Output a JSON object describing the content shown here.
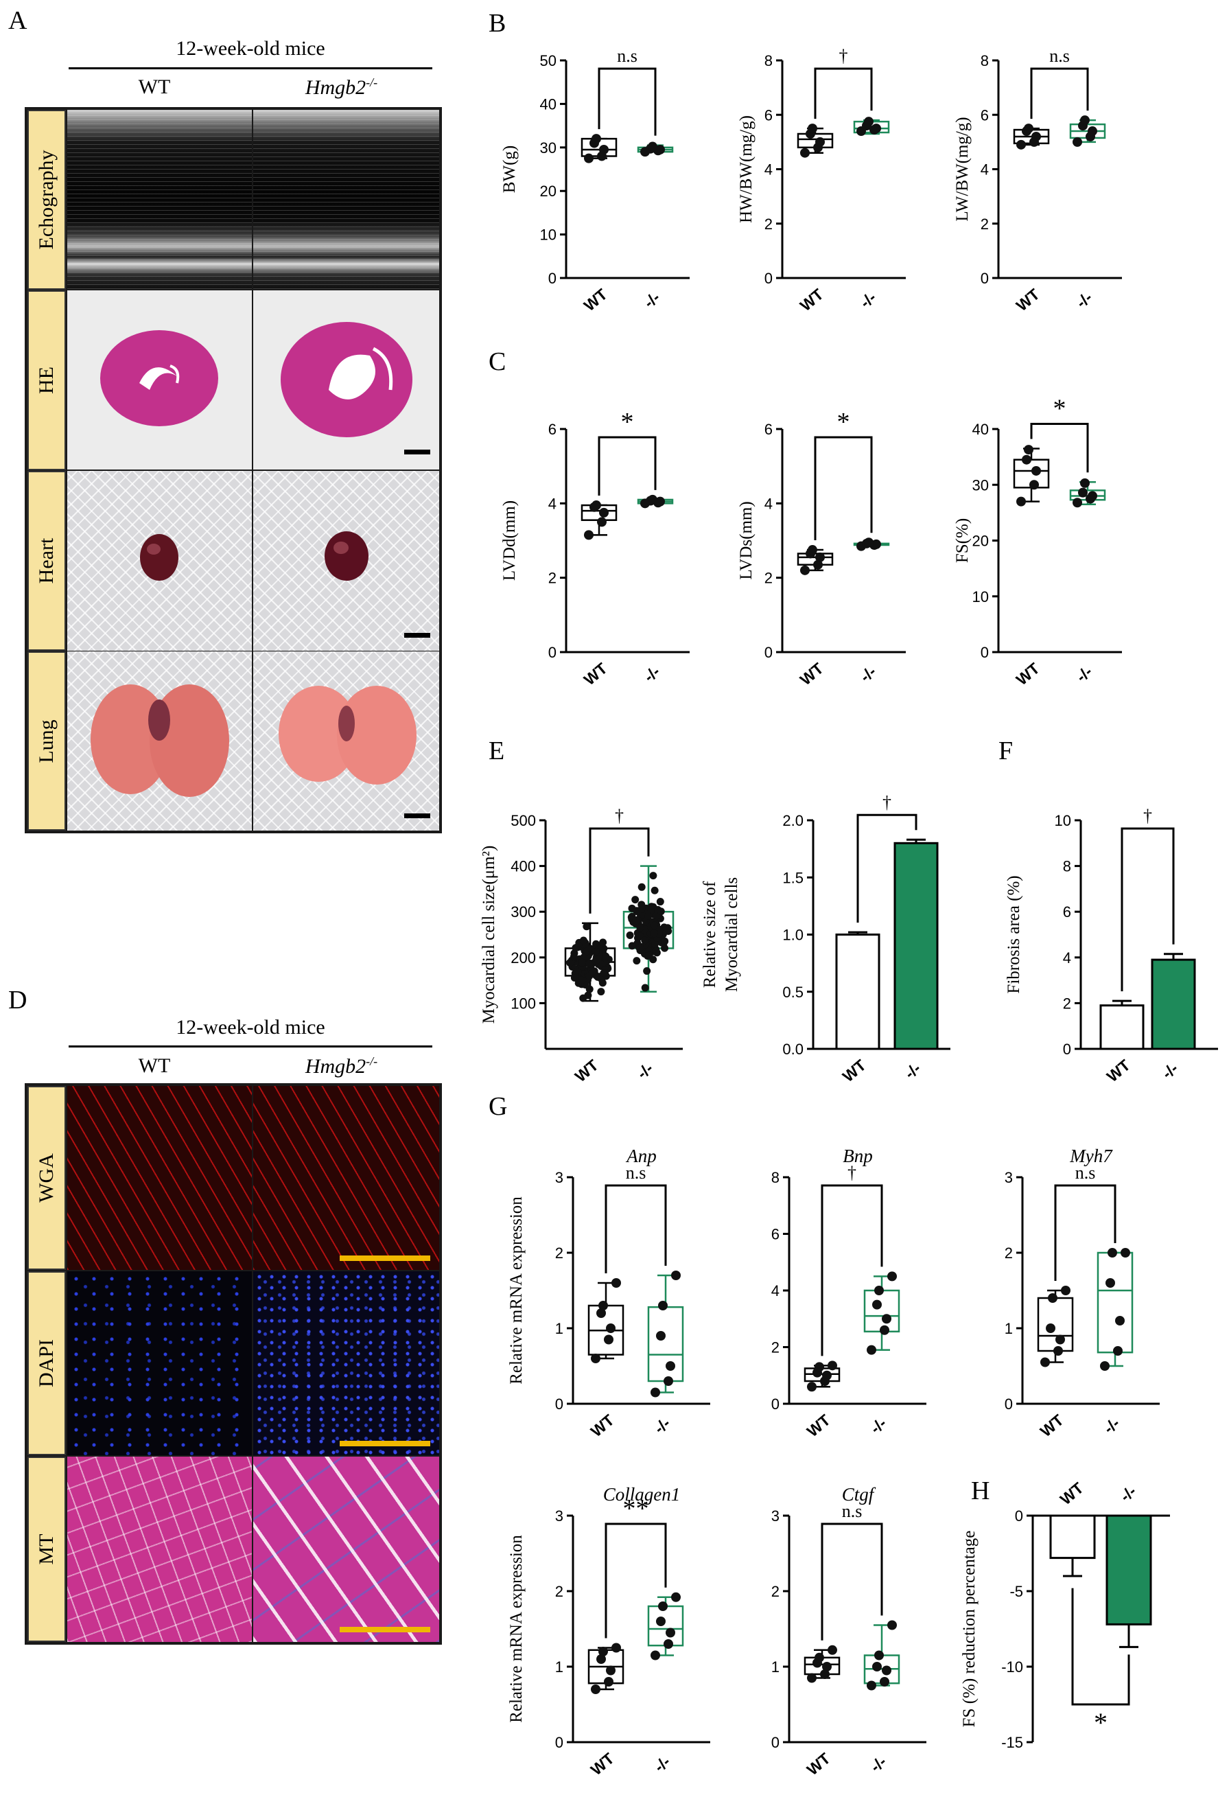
{
  "panel_labels": {
    "A": "A",
    "B": "B",
    "C": "C",
    "D": "D",
    "E": "E",
    "F": "F",
    "G": "G",
    "H": "H"
  },
  "panelA": {
    "group_header": "12-week-old mice",
    "col_wt": "WT",
    "col_ko_gene": "Hmgb2",
    "col_ko_sup": "-/-",
    "rows": [
      "Echography",
      "HE",
      "Heart",
      "Lung"
    ]
  },
  "panelD": {
    "group_header": "12-week-old mice",
    "col_wt": "WT",
    "col_ko_gene": "Hmgb2",
    "col_ko_sup": "-/-",
    "rows": [
      "WGA",
      "DAPI",
      "MT"
    ]
  },
  "colors": {
    "wt": "#000000",
    "ko": "#1e8a5a",
    "ko_bar": "#1e8a5a"
  },
  "chart_data": [
    {
      "id": "BW",
      "panel": "B",
      "type": "box",
      "ylabel": "BW(g)",
      "ylim": [
        0,
        50
      ],
      "yticks": [
        0,
        10,
        20,
        30,
        40,
        50
      ],
      "categories": [
        "WT",
        "-/-"
      ],
      "significance": "n.s",
      "boxes": [
        {
          "min": 27.5,
          "q1": 28,
          "median": 29.5,
          "q3": 32,
          "max": 32
        },
        {
          "min": 29,
          "q1": 29,
          "median": 29.5,
          "q3": 30,
          "max": 30.5
        }
      ],
      "points": [
        [
          27.5,
          28,
          29.5,
          31,
          32
        ],
        [
          29,
          29.3,
          29.5,
          29.7,
          30.2
        ]
      ]
    },
    {
      "id": "HWBW",
      "panel": "B",
      "type": "box",
      "ylabel": "HW/BW(mg/g)",
      "ylim": [
        0,
        8
      ],
      "yticks": [
        0,
        2,
        4,
        6,
        8
      ],
      "categories": [
        "WT",
        "-/-"
      ],
      "significance": "†",
      "boxes": [
        {
          "min": 4.6,
          "q1": 4.8,
          "median": 5.1,
          "q3": 5.3,
          "max": 5.5
        },
        {
          "min": 5.3,
          "q1": 5.35,
          "median": 5.5,
          "q3": 5.75,
          "max": 5.8
        }
      ],
      "points": [
        [
          4.6,
          4.8,
          5.0,
          5.3,
          5.5
        ],
        [
          5.4,
          5.45,
          5.5,
          5.6,
          5.75
        ]
      ]
    },
    {
      "id": "LWBW",
      "panel": "B",
      "type": "box",
      "ylabel": "LW/BW(mg/g)",
      "ylim": [
        0,
        8
      ],
      "yticks": [
        0,
        2,
        4,
        6,
        8
      ],
      "categories": [
        "WT",
        "-/-"
      ],
      "significance": "n.s",
      "boxes": [
        {
          "min": 4.9,
          "q1": 4.95,
          "median": 5.2,
          "q3": 5.45,
          "max": 5.5
        },
        {
          "min": 5.0,
          "q1": 5.15,
          "median": 5.4,
          "q3": 5.65,
          "max": 5.8
        }
      ],
      "points": [
        [
          4.9,
          5.0,
          5.2,
          5.4,
          5.5
        ],
        [
          5.0,
          5.2,
          5.4,
          5.6,
          5.8
        ]
      ]
    },
    {
      "id": "LVDd",
      "panel": "C",
      "type": "box",
      "ylabel": "LVDd(mm)",
      "ylim": [
        0,
        6
      ],
      "yticks": [
        0,
        2,
        4,
        6
      ],
      "categories": [
        "WT",
        "-/-"
      ],
      "significance": "*",
      "boxes": [
        {
          "min": 3.15,
          "q1": 3.55,
          "median": 3.8,
          "q3": 3.95,
          "max": 3.95
        },
        {
          "min": 4.0,
          "q1": 4.0,
          "median": 4.05,
          "q3": 4.1,
          "max": 4.1
        }
      ],
      "points": [
        [
          3.15,
          3.5,
          3.75,
          3.9,
          3.95
        ],
        [
          4.0,
          4.02,
          4.05,
          4.07,
          4.1
        ]
      ]
    },
    {
      "id": "LVDs",
      "panel": "C",
      "type": "box",
      "ylabel": "LVDs(mm)",
      "ylim": [
        0,
        6
      ],
      "yticks": [
        0,
        2,
        4,
        6
      ],
      "categories": [
        "WT",
        "-/-"
      ],
      "significance": "*",
      "boxes": [
        {
          "min": 2.2,
          "q1": 2.35,
          "median": 2.55,
          "q3": 2.65,
          "max": 2.75
        },
        {
          "min": 2.85,
          "q1": 2.88,
          "median": 2.9,
          "q3": 2.92,
          "max": 2.95
        }
      ],
      "points": [
        [
          2.2,
          2.35,
          2.55,
          2.65,
          2.75
        ],
        [
          2.85,
          2.88,
          2.9,
          2.92,
          2.95
        ]
      ]
    },
    {
      "id": "FS",
      "panel": "C",
      "type": "box",
      "ylabel": "FS(%)",
      "ylim": [
        0,
        40
      ],
      "yticks": [
        0,
        10,
        20,
        30,
        40
      ],
      "categories": [
        "WT",
        "-/-"
      ],
      "significance": "*",
      "boxes": [
        {
          "min": 27,
          "q1": 29.5,
          "median": 32.5,
          "q3": 34.5,
          "max": 36.5
        },
        {
          "min": 26.5,
          "q1": 27.3,
          "median": 28,
          "q3": 29,
          "max": 30.5
        }
      ],
      "points": [
        [
          27,
          30,
          32.5,
          34.5,
          36.3
        ],
        [
          26.8,
          27.5,
          28,
          28.6,
          30.3
        ]
      ]
    },
    {
      "id": "CellSize",
      "panel": "E",
      "type": "box_scatter",
      "ylabel": "Myocardial cell size(μm²)",
      "ylim": [
        0,
        500
      ],
      "yticks": [
        100,
        200,
        300,
        400,
        500
      ],
      "categories": [
        "WT",
        "-/-"
      ],
      "significance": "†",
      "boxes": [
        {
          "min": 105,
          "q1": 160,
          "median": 190,
          "q3": 220,
          "max": 275
        },
        {
          "min": 125,
          "q1": 220,
          "median": 265,
          "q3": 300,
          "max": 400
        }
      ],
      "n_points": [
        110,
        130
      ]
    },
    {
      "id": "RelSize",
      "panel": "E",
      "type": "bar",
      "ylabel": "Relative size of Myocardial cells",
      "ylim": [
        0,
        2.0
      ],
      "yticks": [
        0.0,
        0.5,
        1.0,
        1.5,
        2.0
      ],
      "categories": [
        "WT",
        "-/-"
      ],
      "significance": "†",
      "values": [
        1.0,
        1.8
      ],
      "errors": [
        0.02,
        0.03
      ]
    },
    {
      "id": "Fibrosis",
      "panel": "F",
      "type": "bar",
      "ylabel": "Fibrosis area (%)",
      "ylim": [
        0,
        10
      ],
      "yticks": [
        0,
        2,
        4,
        6,
        8,
        10
      ],
      "categories": [
        "WT",
        "-/-"
      ],
      "significance": "†",
      "values": [
        1.9,
        3.9
      ],
      "errors": [
        0.2,
        0.25
      ]
    },
    {
      "id": "Anp",
      "panel": "G",
      "type": "box",
      "title": "Anp",
      "ylabel": "Relative mRNA expression",
      "ylim": [
        0,
        3
      ],
      "yticks": [
        0,
        1,
        2,
        3
      ],
      "categories": [
        "WT",
        "-/-"
      ],
      "significance": "n.s",
      "boxes": [
        {
          "min": 0.6,
          "q1": 0.65,
          "median": 0.97,
          "q3": 1.3,
          "max": 1.6
        },
        {
          "min": 0.15,
          "q1": 0.3,
          "median": 0.65,
          "q3": 1.28,
          "max": 1.7
        }
      ],
      "points": [
        [
          0.6,
          0.85,
          1.0,
          1.2,
          1.3,
          1.6
        ],
        [
          0.15,
          0.3,
          0.5,
          0.9,
          1.3,
          1.7
        ]
      ]
    },
    {
      "id": "Bnp",
      "panel": "G",
      "type": "box",
      "title": "Bnp",
      "ylabel": "",
      "ylim": [
        0,
        8
      ],
      "yticks": [
        0,
        2,
        4,
        6,
        8
      ],
      "categories": [
        "WT",
        "-/-"
      ],
      "significance": "†",
      "boxes": [
        {
          "min": 0.6,
          "q1": 0.8,
          "median": 1.05,
          "q3": 1.25,
          "max": 1.35
        },
        {
          "min": 1.9,
          "q1": 2.55,
          "median": 3.1,
          "q3": 4.0,
          "max": 4.5
        }
      ],
      "points": [
        [
          0.6,
          0.8,
          1.0,
          1.1,
          1.3,
          1.35
        ],
        [
          1.9,
          2.6,
          3.0,
          3.5,
          4.0,
          4.5
        ]
      ]
    },
    {
      "id": "Myh7",
      "panel": "G",
      "type": "box",
      "title": "Myh7",
      "ylabel": "",
      "ylim": [
        0,
        3
      ],
      "yticks": [
        0,
        1,
        2,
        3
      ],
      "categories": [
        "WT",
        "-/-"
      ],
      "significance": "n.s",
      "boxes": [
        {
          "min": 0.55,
          "q1": 0.7,
          "median": 0.9,
          "q3": 1.4,
          "max": 1.5
        },
        {
          "min": 0.5,
          "q1": 0.68,
          "median": 1.5,
          "q3": 2.0,
          "max": 2.0
        }
      ],
      "points": [
        [
          0.55,
          0.7,
          0.85,
          1.0,
          1.4,
          1.5
        ],
        [
          0.5,
          0.7,
          1.1,
          1.6,
          2.0,
          2.0
        ]
      ]
    },
    {
      "id": "Collagen1",
      "panel": "G",
      "type": "box",
      "title": "Collagen1",
      "ylabel": "Relative mRNA expression",
      "ylim": [
        0,
        3
      ],
      "yticks": [
        0,
        1,
        2,
        3
      ],
      "categories": [
        "WT",
        "-/-"
      ],
      "significance": "**",
      "boxes": [
        {
          "min": 0.7,
          "q1": 0.78,
          "median": 1.0,
          "q3": 1.22,
          "max": 1.25
        },
        {
          "min": 1.15,
          "q1": 1.28,
          "median": 1.5,
          "q3": 1.8,
          "max": 1.92
        }
      ],
      "points": [
        [
          0.7,
          0.8,
          0.95,
          1.1,
          1.2,
          1.25
        ],
        [
          1.15,
          1.3,
          1.45,
          1.6,
          1.8,
          1.92
        ]
      ]
    },
    {
      "id": "Ctgf",
      "panel": "G",
      "type": "box",
      "title": "Ctgf",
      "ylabel": "",
      "ylim": [
        0,
        3
      ],
      "yticks": [
        0,
        1,
        2,
        3
      ],
      "categories": [
        "WT",
        "-/-"
      ],
      "significance": "n.s",
      "boxes": [
        {
          "min": 0.85,
          "q1": 0.9,
          "median": 1.03,
          "q3": 1.12,
          "max": 1.22
        },
        {
          "min": 0.75,
          "q1": 0.78,
          "median": 0.97,
          "q3": 1.15,
          "max": 1.55
        }
      ],
      "points": [
        [
          0.85,
          0.9,
          1.0,
          1.05,
          1.12,
          1.22
        ],
        [
          0.75,
          0.8,
          0.95,
          1.0,
          1.15,
          1.55
        ]
      ]
    },
    {
      "id": "FSreduction",
      "panel": "H",
      "type": "bar_negative",
      "ylabel": "FS (%) reduction percentage",
      "ylim": [
        -15,
        0
      ],
      "yticks": [
        0,
        -5,
        -10,
        -15
      ],
      "categories": [
        "WT",
        "-/-"
      ],
      "significance": "*",
      "values": [
        -2.8,
        -7.2
      ],
      "errors": [
        1.2,
        1.5
      ]
    }
  ]
}
